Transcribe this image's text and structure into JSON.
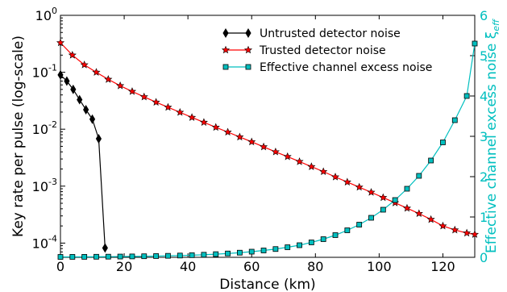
{
  "chart_data": {
    "type": "line",
    "xlabel": "Distance (km)",
    "ylabel_left": "Key rate per pulse (log-scale)",
    "ylabel_right": "Effective channel excess noise ξ",
    "ylabel_right_sub": "eff",
    "xlim": [
      0,
      130
    ],
    "ylim_left_log10": [
      -4.25,
      0
    ],
    "ylim_right": [
      0,
      6
    ],
    "x_ticks": [
      0,
      20,
      40,
      60,
      80,
      100,
      120
    ],
    "x_tick_labels": [
      "0",
      "20",
      "40",
      "60",
      "80",
      "100",
      "120"
    ],
    "y_left_ticks_log10": [
      0,
      -1,
      -2,
      -3,
      -4
    ],
    "y_left_tick_base": "10",
    "y_left_tick_exps": [
      "0",
      "-1",
      "-2",
      "-3",
      "-4"
    ],
    "y_right_ticks": [
      0,
      1,
      2,
      3,
      4,
      5,
      6
    ],
    "y_right_tick_labels": [
      "0",
      "1",
      "2",
      "3",
      "4",
      "5",
      "6"
    ],
    "right_axis_color": "#00bfbf",
    "legend_position": "top-right",
    "series": [
      {
        "name": "Untrusted detector noise",
        "axis": "left",
        "color": "#000000",
        "marker": "diamond",
        "x": [
          0,
          2,
          4,
          6,
          8,
          10,
          12,
          14
        ],
        "y": [
          0.09,
          0.07,
          0.05,
          0.033,
          0.022,
          0.015,
          0.0068,
          8.2e-05
        ]
      },
      {
        "name": "Trusted detector noise",
        "axis": "left",
        "color": "#ff0000",
        "marker": "star",
        "x": [
          0,
          3.75,
          7.5,
          11.25,
          15,
          18.75,
          22.5,
          26.25,
          30,
          33.75,
          37.5,
          41.25,
          45,
          48.75,
          52.5,
          56.25,
          60,
          63.75,
          67.5,
          71.25,
          75,
          78.75,
          82.5,
          86.25,
          90,
          93.75,
          97.5,
          101.25,
          105,
          108.75,
          112.5,
          116.25,
          120,
          123.75,
          127.5,
          130
        ],
        "y": [
          0.33,
          0.2,
          0.135,
          0.1,
          0.075,
          0.058,
          0.046,
          0.037,
          0.0298,
          0.0243,
          0.0198,
          0.0161,
          0.0132,
          0.0108,
          0.0089,
          0.0073,
          0.006,
          0.0049,
          0.004,
          0.0033,
          0.0027,
          0.0022,
          0.0018,
          0.00145,
          0.00118,
          0.00096,
          0.00078,
          0.00063,
          0.00051,
          0.00041,
          0.00033,
          0.00026,
          0.0002,
          0.00017,
          0.00015,
          0.000142
        ]
      },
      {
        "name": "Effective channel excess noise",
        "axis": "right",
        "color": "#00bfbf",
        "marker": "square",
        "x": [
          0,
          3.75,
          7.5,
          11.25,
          15,
          18.75,
          22.5,
          26.25,
          30,
          33.75,
          37.5,
          41.25,
          45,
          48.75,
          52.5,
          56.25,
          60,
          63.75,
          67.5,
          71.25,
          75,
          78.75,
          82.5,
          86.25,
          90,
          93.75,
          97.5,
          101.25,
          105,
          108.75,
          112.5,
          116.25,
          120,
          123.75,
          127.5,
          130
        ],
        "y": [
          0.01,
          0.011,
          0.012,
          0.014,
          0.016,
          0.019,
          0.022,
          0.026,
          0.031,
          0.037,
          0.044,
          0.053,
          0.064,
          0.078,
          0.095,
          0.115,
          0.14,
          0.17,
          0.205,
          0.25,
          0.3,
          0.37,
          0.45,
          0.55,
          0.67,
          0.81,
          0.98,
          1.18,
          1.42,
          1.7,
          2.02,
          2.4,
          2.85,
          3.4,
          4.0,
          5.3
        ]
      }
    ]
  }
}
